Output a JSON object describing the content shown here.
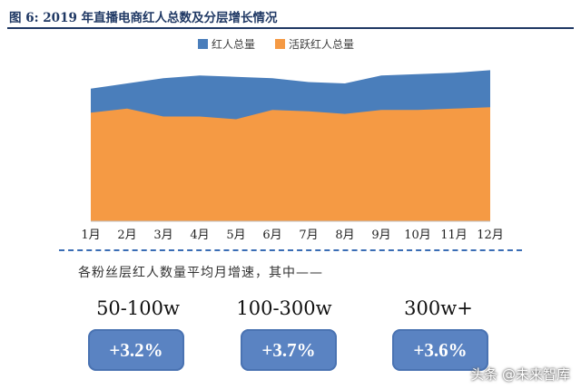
{
  "figure": {
    "title": "图  6:  2019 年直播电商红人总数及分层增长情况"
  },
  "chart_data": {
    "type": "area",
    "categories": [
      "1月",
      "2月",
      "3月",
      "4月",
      "5月",
      "6月",
      "7月",
      "8月",
      "9月",
      "10月",
      "11月",
      "12月"
    ],
    "series": [
      {
        "name": "红人总量",
        "values": [
          100,
          104,
          108,
          110,
          109,
          108,
          105,
          104,
          110,
          111,
          112,
          114
        ],
        "color": "#4a7ebb"
      },
      {
        "name": "活跃红人总量",
        "values": [
          82,
          85,
          79,
          79,
          77,
          84,
          83,
          81,
          84,
          84,
          85,
          86
        ],
        "color": "#f59a44"
      }
    ],
    "ylim": [
      0,
      130
    ],
    "grid": false,
    "legend_position": "top-center",
    "xlabel": "",
    "ylabel": ""
  },
  "growth": {
    "intro": "各粉丝层红人数量平均月增速，其中——",
    "tiers": [
      {
        "label": "50-100w",
        "value": "+3.2%"
      },
      {
        "label": "100-300w",
        "value": "+3.7%"
      },
      {
        "label": "300w+",
        "value": "+3.6%"
      }
    ]
  },
  "watermark": "头条 @未来智库",
  "colors": {
    "title": "#1f3864",
    "divider": "#3a6db5",
    "tier_box": "#5a83c2"
  }
}
